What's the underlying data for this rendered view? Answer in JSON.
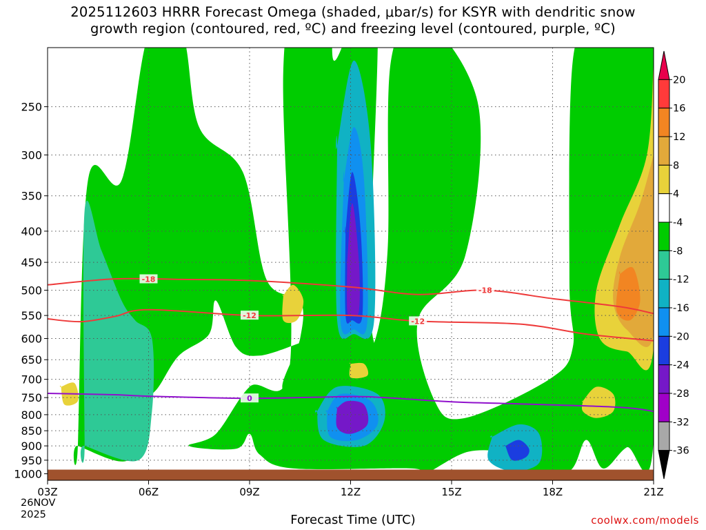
{
  "title": {
    "line1": "2025112603 HRRR Forecast Omega (shaded, μbar/s) for KSYR with dendritic snow",
    "line2": "growth region (contoured, red, ºC) and freezing level (contoured, purple, ºC)"
  },
  "x_axis_title": "Forecast Time (UTC)",
  "date_label": {
    "day": "26NOV",
    "year": "2025"
  },
  "credit": "coolwx.com/models",
  "chart_data": {
    "type": "heatmap",
    "title": "2025112603 HRRR Forecast Omega (shaded, μbar/s) for KSYR",
    "xlabel": "Forecast Time (UTC)",
    "ylabel": "",
    "x_ticks": [
      "03Z",
      "06Z",
      "09Z",
      "12Z",
      "15Z",
      "18Z",
      "21Z"
    ],
    "x_hours": [
      3,
      6,
      9,
      12,
      15,
      18,
      21
    ],
    "xlim": [
      3,
      21
    ],
    "y_ticks": [
      250,
      300,
      350,
      400,
      450,
      500,
      550,
      600,
      650,
      700,
      750,
      800,
      850,
      900,
      950,
      1000
    ],
    "ylim_hpa": [
      200,
      1025
    ],
    "y_scale": "log-pressure",
    "grid": true,
    "colorbar": {
      "labels": [
        "20",
        "16",
        "12",
        "8",
        "4",
        "-4",
        "-8",
        "-12",
        "-16",
        "-20",
        "-24",
        "-28",
        "-32",
        "-36"
      ],
      "bounds": [
        20,
        16,
        12,
        8,
        4,
        -4,
        -8,
        -12,
        -16,
        -20,
        -24,
        -28,
        -32,
        -36
      ],
      "colors": [
        "#e8004c",
        "#ff3a3a",
        "#f28522",
        "#e2a93a",
        "#e8d23a",
        "#ffffff",
        "#00cc00",
        "#2ec996",
        "#10b2c4",
        "#1090f0",
        "#1b3de0",
        "#7518c8",
        "#a000c8",
        "#a8a8a8",
        "#000000"
      ]
    },
    "contours": [
      {
        "name": "-18",
        "color": "#ee3a3a",
        "label": "-18",
        "points": [
          [
            3,
            490
          ],
          [
            5,
            479
          ],
          [
            7,
            480
          ],
          [
            9,
            482
          ],
          [
            12,
            494
          ],
          [
            14,
            508
          ],
          [
            16,
            500
          ],
          [
            18,
            516
          ],
          [
            20,
            532
          ],
          [
            21,
            546
          ]
        ]
      },
      {
        "name": "-12",
        "color": "#ee3a3a",
        "label": "-12",
        "points": [
          [
            3,
            557
          ],
          [
            4,
            563
          ],
          [
            5,
            552
          ],
          [
            6,
            538
          ],
          [
            9,
            550
          ],
          [
            12,
            550
          ],
          [
            14,
            562
          ],
          [
            17,
            568
          ],
          [
            19,
            590
          ],
          [
            21,
            605
          ]
        ]
      },
      {
        "name": "0",
        "color": "#9010cc",
        "label": "0",
        "points": [
          [
            3,
            738
          ],
          [
            5,
            742
          ],
          [
            6,
            746
          ],
          [
            9,
            752
          ],
          [
            12,
            747
          ],
          [
            13,
            750
          ],
          [
            15,
            762
          ],
          [
            17,
            768
          ],
          [
            20,
            778
          ],
          [
            21,
            790
          ]
        ]
      }
    ],
    "regions": [
      {
        "value": "-4 to -8",
        "color": "#00cc00",
        "path": [
          [
            3.9,
            900
          ],
          [
            4.2,
            330
          ],
          [
            5.2,
            330
          ],
          [
            6.0,
            190
          ],
          [
            7.0,
            190
          ],
          [
            7.5,
            270
          ],
          [
            8.8,
            320
          ],
          [
            9.5,
            480
          ],
          [
            10.5,
            520
          ],
          [
            10.5,
            600
          ],
          [
            10.0,
            730
          ],
          [
            11.5,
            700
          ],
          [
            12.5,
            700
          ],
          [
            13.5,
            680
          ],
          [
            12.6,
            560
          ],
          [
            12.8,
            180
          ],
          [
            12.2,
            175
          ],
          [
            11.5,
            210
          ],
          [
            11.4,
            160
          ],
          [
            10.5,
            160
          ],
          [
            10.0,
            220
          ],
          [
            10.2,
            660
          ],
          [
            9.0,
            720
          ],
          [
            8.0,
            860
          ],
          [
            7.2,
            900
          ],
          [
            8.6,
            910
          ],
          [
            9.0,
            860
          ],
          [
            9.3,
            930
          ],
          [
            10.3,
            980
          ],
          [
            13.8,
            980
          ],
          [
            14.2,
            1000
          ],
          [
            15.5,
            920
          ],
          [
            16.8,
            930
          ],
          [
            17.3,
            995
          ],
          [
            18.5,
            990
          ],
          [
            19.0,
            880
          ],
          [
            19.5,
            980
          ],
          [
            20.2,
            905
          ],
          [
            21.0,
            880
          ],
          [
            21.0,
            180
          ],
          [
            20.2,
            165
          ],
          [
            19.4,
            175
          ],
          [
            18.6,
            210
          ],
          [
            18.5,
            480
          ],
          [
            18.6,
            620
          ],
          [
            17.9,
            700
          ],
          [
            15.4,
            810
          ],
          [
            14.5,
            760
          ],
          [
            14.0,
            560
          ],
          [
            15.4,
            440
          ],
          [
            15.8,
            250
          ],
          [
            14.2,
            180
          ],
          [
            13.2,
            210
          ],
          [
            13.1,
            430
          ],
          [
            12.7,
            610
          ],
          [
            12.0,
            640
          ],
          [
            10.8,
            600
          ],
          [
            10.5,
            610
          ],
          [
            9.3,
            640
          ],
          [
            8.6,
            620
          ],
          [
            8.0,
            520
          ],
          [
            7.8,
            590
          ],
          [
            6.9,
            640
          ],
          [
            6.3,
            720
          ],
          [
            5.8,
            780
          ],
          [
            5.4,
            950
          ],
          [
            3.9,
            900
          ]
        ]
      },
      {
        "value": "-8 to -12",
        "color": "#2ec996",
        "path": [
          [
            4.1,
            900
          ],
          [
            4.1,
            370
          ],
          [
            4.6,
            430
          ],
          [
            5.2,
            520
          ],
          [
            5.6,
            560
          ],
          [
            6.1,
            600
          ],
          [
            6.1,
            790
          ],
          [
            5.7,
            950
          ],
          [
            4.1,
            900
          ]
        ]
      },
      {
        "value": "-12 to -16",
        "color": "#10b2c4",
        "path": [
          [
            11.6,
            290
          ],
          [
            12.1,
            210
          ],
          [
            12.6,
            290
          ],
          [
            12.7,
            560
          ],
          [
            12.1,
            590
          ],
          [
            11.6,
            560
          ],
          [
            11.6,
            290
          ]
        ]
      },
      {
        "value": "-16 to -20",
        "color": "#1090f0",
        "path": [
          [
            11.8,
            330
          ],
          [
            12.1,
            270
          ],
          [
            12.4,
            330
          ],
          [
            12.5,
            560
          ],
          [
            12.1,
            580
          ],
          [
            11.7,
            560
          ],
          [
            11.8,
            330
          ]
        ]
      },
      {
        "value": "-20 to -24",
        "color": "#1b3de0",
        "path": [
          [
            11.85,
            400
          ],
          [
            12.05,
            320
          ],
          [
            12.3,
            400
          ],
          [
            12.35,
            550
          ],
          [
            12.05,
            560
          ],
          [
            11.85,
            550
          ],
          [
            11.85,
            400
          ]
        ]
      },
      {
        "value": "-24 to -28",
        "color": "#7518c8",
        "path": [
          [
            11.9,
            450
          ],
          [
            12.05,
            360
          ],
          [
            12.25,
            450
          ],
          [
            12.25,
            540
          ],
          [
            12.05,
            550
          ],
          [
            11.9,
            540
          ],
          [
            11.9,
            450
          ]
        ]
      },
      {
        "value": "-12 to -16",
        "color": "#10b2c4",
        "path": [
          [
            11.0,
            790
          ],
          [
            11.6,
            720
          ],
          [
            12.8,
            740
          ],
          [
            13.0,
            820
          ],
          [
            12.4,
            900
          ],
          [
            11.2,
            880
          ],
          [
            11.0,
            790
          ]
        ]
      },
      {
        "value": "-16 to -20",
        "color": "#1090f0",
        "path": [
          [
            11.3,
            790
          ],
          [
            11.7,
            740
          ],
          [
            12.6,
            760
          ],
          [
            12.8,
            830
          ],
          [
            12.2,
            880
          ],
          [
            11.4,
            870
          ],
          [
            11.3,
            790
          ]
        ]
      },
      {
        "value": "-24 to -28",
        "color": "#7518c8",
        "path": [
          [
            11.6,
            780
          ],
          [
            11.9,
            760
          ],
          [
            12.4,
            770
          ],
          [
            12.5,
            830
          ],
          [
            12.0,
            860
          ],
          [
            11.6,
            840
          ],
          [
            11.6,
            780
          ]
        ]
      },
      {
        "value": "-12 to -16",
        "color": "#10b2c4",
        "path": [
          [
            16.2,
            870
          ],
          [
            17.0,
            830
          ],
          [
            17.6,
            860
          ],
          [
            17.6,
            960
          ],
          [
            16.8,
            990
          ],
          [
            16.1,
            950
          ],
          [
            16.2,
            870
          ]
        ]
      },
      {
        "value": "-20 to -24",
        "color": "#1b3de0",
        "path": [
          [
            16.6,
            900
          ],
          [
            17.0,
            880
          ],
          [
            17.3,
            910
          ],
          [
            17.2,
            940
          ],
          [
            16.8,
            950
          ],
          [
            16.6,
            900
          ]
        ]
      },
      {
        "value": "4 to 8",
        "color": "#e8d23a",
        "path": [
          [
            21.0,
            210
          ],
          [
            20.8,
            300
          ],
          [
            20.0,
            390
          ],
          [
            19.3,
            500
          ],
          [
            19.4,
            600
          ],
          [
            20.2,
            630
          ],
          [
            21.0,
            620
          ],
          [
            21.0,
            210
          ]
        ]
      },
      {
        "value": "8 to 12",
        "color": "#e2a93a",
        "path": [
          [
            21.0,
            300
          ],
          [
            20.6,
            360
          ],
          [
            20.0,
            440
          ],
          [
            19.8,
            520
          ],
          [
            20.2,
            580
          ],
          [
            21.0,
            590
          ],
          [
            21.0,
            300
          ]
        ]
      },
      {
        "value": "12 to 16",
        "color": "#f28522",
        "path": [
          [
            20.0,
            470
          ],
          [
            20.4,
            460
          ],
          [
            20.6,
            520
          ],
          [
            20.3,
            560
          ],
          [
            19.9,
            540
          ],
          [
            20.0,
            470
          ]
        ]
      },
      {
        "value": "4 to 8",
        "color": "#e8d23a",
        "path": [
          [
            18.9,
            760
          ],
          [
            19.3,
            720
          ],
          [
            19.8,
            740
          ],
          [
            19.8,
            790
          ],
          [
            19.3,
            810
          ],
          [
            18.9,
            790
          ],
          [
            18.9,
            760
          ]
        ]
      },
      {
        "value": "4 to 8",
        "color": "#e8d23a",
        "path": [
          [
            10.0,
            510
          ],
          [
            10.3,
            490
          ],
          [
            10.6,
            520
          ],
          [
            10.4,
            560
          ],
          [
            10.0,
            560
          ],
          [
            10.0,
            510
          ]
        ]
      },
      {
        "value": "4 to 8",
        "color": "#e8d23a",
        "path": [
          [
            12.0,
            660
          ],
          [
            12.4,
            660
          ],
          [
            12.5,
            690
          ],
          [
            12.0,
            695
          ],
          [
            12.0,
            660
          ]
        ]
      },
      {
        "value": "4 to 8",
        "color": "#e8d23a",
        "path": [
          [
            3.4,
            720
          ],
          [
            3.8,
            710
          ],
          [
            3.9,
            760
          ],
          [
            3.5,
            770
          ],
          [
            3.4,
            720
          ]
        ]
      }
    ],
    "ground": {
      "pressure_hpa": 1000,
      "color": "#a0522d"
    }
  }
}
